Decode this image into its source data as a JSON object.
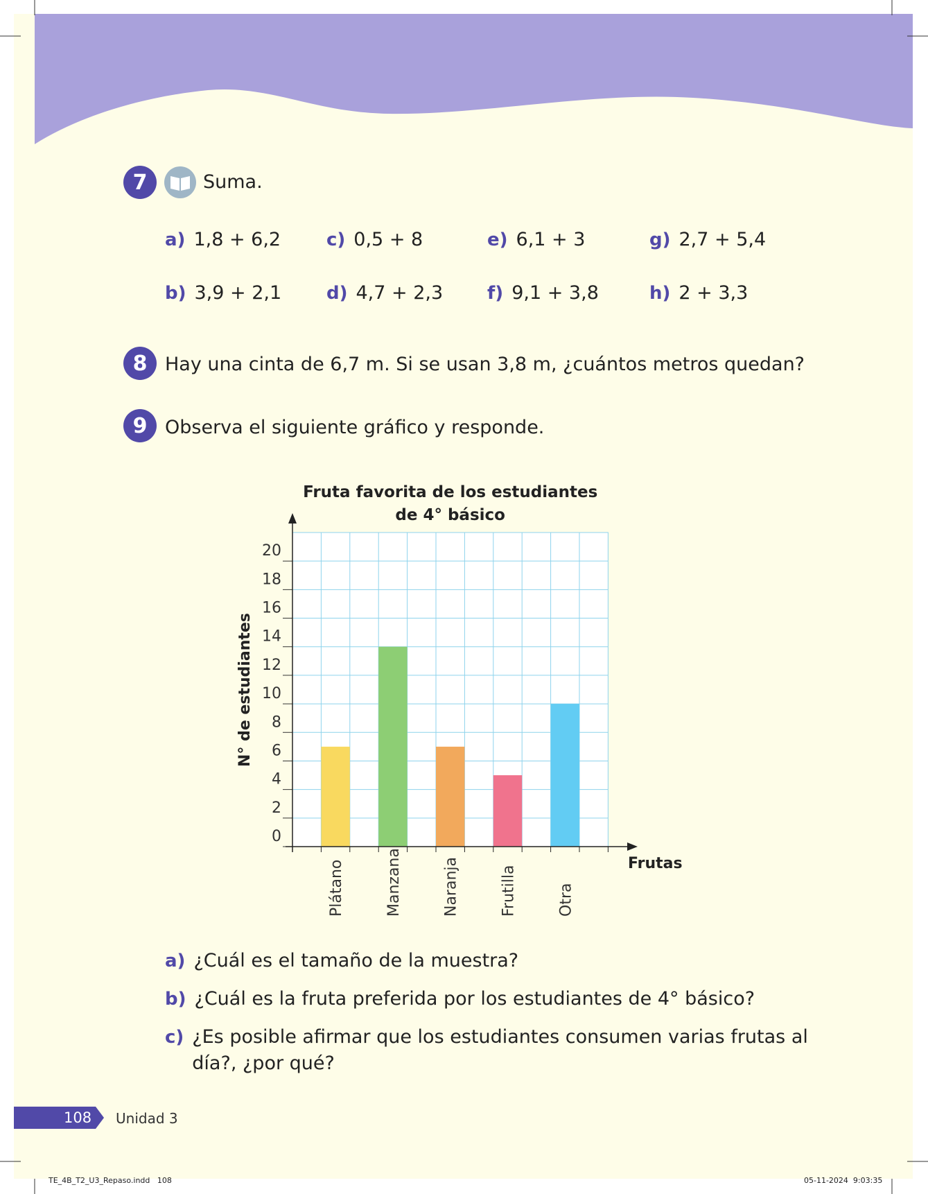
{
  "exercises": [
    {
      "number": "7",
      "text": "Suma.",
      "items": [
        {
          "label": "a)",
          "text": "1,8 + 6,2"
        },
        {
          "label": "b)",
          "text": "3,9 + 2,1"
        },
        {
          "label": "c)",
          "text": "0,5 + 8"
        },
        {
          "label": "d)",
          "text": "4,7 + 2,3"
        },
        {
          "label": "e)",
          "text": "6,1 + 3"
        },
        {
          "label": "f)",
          "text": "9,1 + 3,8"
        },
        {
          "label": "g)",
          "text": "2,7 + 5,4"
        },
        {
          "label": "h)",
          "text": "2 + 3,3"
        }
      ]
    },
    {
      "number": "8",
      "text": "Hay una cinta de 6,7 m. Si se usan 3,8 m, ¿cuántos metros quedan?"
    },
    {
      "number": "9",
      "text": "Observa el siguiente gráfico y responde.",
      "questions": [
        {
          "label": "a)",
          "text": "¿Cuál es el tamaño de la muestra?"
        },
        {
          "label": "b)",
          "text": "¿Cuál es la fruta preferida por los estudiantes de 4° básico?"
        },
        {
          "label": "c)",
          "text": "¿Es posible afirmar que los estudiantes consumen varias frutas al día?, ¿por qué?"
        }
      ]
    }
  ],
  "chart_data": {
    "type": "bar",
    "title": "Fruta favorita de los estudiantes de 4° básico",
    "x_label": "Frutas",
    "y_label": "N° de estudiantes",
    "categories": [
      "Plátano",
      "Manzana",
      "Naranja",
      "Frutilla",
      "Otra"
    ],
    "values": [
      7,
      14,
      7,
      5,
      10
    ],
    "colors": [
      "#f9d95f",
      "#8dce74",
      "#f2a95c",
      "#f0738d",
      "#62ccf3"
    ],
    "ylim": [
      0,
      22
    ],
    "yticks": [
      0,
      2,
      4,
      6,
      8,
      10,
      12,
      14,
      16,
      18,
      20
    ],
    "grid": true
  },
  "footer": {
    "page": "108",
    "unit": "Unidad 3",
    "slug": "TE_4B_T2_U3_Repaso.indd   108",
    "timestamp": "05-11-2024  9:03:35"
  }
}
